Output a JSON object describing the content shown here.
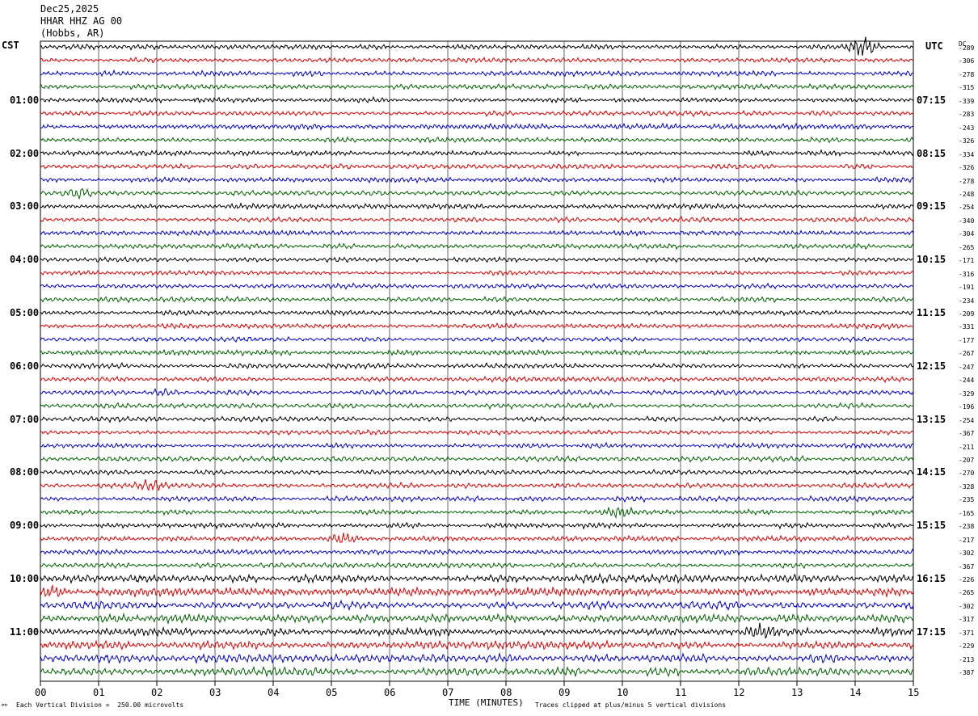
{
  "header": {
    "date": "Dec25,2025",
    "station": "HHAR HHZ AG 00",
    "location": "(Hobbs, AR)"
  },
  "left_label": "CST",
  "right_label": "UTC",
  "dc_label": "DC",
  "footer": {
    "left_mark": "⚯",
    "scale_text": "Each Vertical Division =  250.00 microvolts",
    "x_title": "TIME (MINUTES)",
    "clip_text": "Traces clipped at plus/minus 5 vertical divisions"
  },
  "colors": {
    "black": "#000000",
    "red": "#e00000",
    "blue": "#0000d0",
    "green": "#006400",
    "grid": "#000000"
  },
  "chart_data": {
    "type": "line",
    "title": "",
    "xlabel": "TIME (MINUTES)",
    "ylabel": "",
    "xlim": [
      0,
      15
    ],
    "x_ticks": [
      "00",
      "01",
      "02",
      "03",
      "04",
      "05",
      "06",
      "07",
      "08",
      "09",
      "10",
      "11",
      "12",
      "13",
      "14",
      "15"
    ],
    "trace_count": 48,
    "trace_color_cycle": [
      "black",
      "red",
      "blue",
      "green"
    ],
    "left_hour_labels": [
      "01:00",
      "02:00",
      "03:00",
      "04:00",
      "05:00",
      "06:00",
      "07:00",
      "08:00",
      "09:00",
      "10:00",
      "11:00"
    ],
    "right_hour_labels": [
      "07:15",
      "08:15",
      "09:15",
      "10:15",
      "11:15",
      "12:15",
      "13:15",
      "14:15",
      "15:15",
      "16:15",
      "17:15"
    ],
    "dc_offsets": [
      -289,
      -306,
      -278,
      -315,
      -339,
      -283,
      -243,
      -326,
      -334,
      -326,
      -278,
      -248,
      -254,
      -340,
      -304,
      -265,
      -171,
      -316,
      -191,
      -234,
      -209,
      -331,
      -177,
      -267,
      -247,
      -244,
      -329,
      -196,
      -254,
      -367,
      -211,
      -207,
      -270,
      -328,
      -235,
      -165,
      -238,
      -217,
      -302,
      -367,
      -226,
      -265,
      -302,
      -317,
      -371,
      -229,
      -213,
      -387
    ],
    "events": [
      {
        "trace": 0,
        "minute": 14.15,
        "amplitude": 10,
        "description": "spike"
      },
      {
        "trace": 11,
        "minute": 0.65,
        "amplitude": 7,
        "description": "burst"
      },
      {
        "trace": 26,
        "minute": 2.1,
        "amplitude": 4
      },
      {
        "trace": 33,
        "minute": 1.9,
        "amplitude": 5
      },
      {
        "trace": 35,
        "minute": 9.9,
        "amplitude": 5
      },
      {
        "trace": 37,
        "minute": 5.2,
        "amplitude": 6
      },
      {
        "trace": 41,
        "minute": 0.2,
        "amplitude": 5
      },
      {
        "trace": 44,
        "minute": 12.4,
        "amplitude": 5
      }
    ]
  }
}
